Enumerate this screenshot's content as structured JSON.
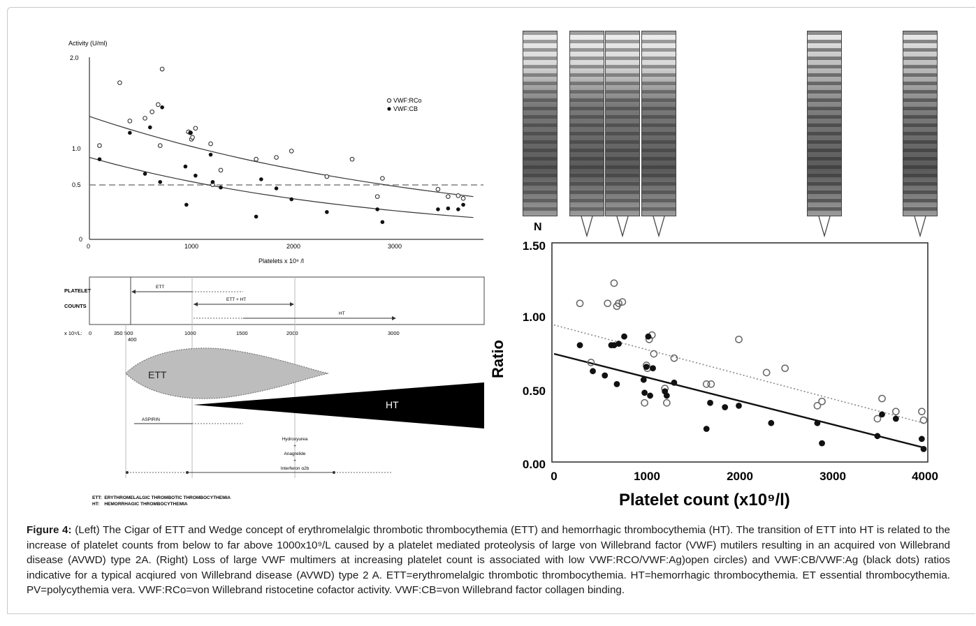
{
  "left_top_chart": {
    "y_axis_title": "Activity (U/ml)",
    "y_ticks": [
      "2.0",
      "1.0",
      "0.5",
      "0"
    ],
    "x_ticks": [
      "0",
      "1000",
      "2000",
      "3000"
    ],
    "x_axis_title": "Platelets x 10⁹ /l",
    "legend": [
      "VWF:RCo",
      "VWF:CB"
    ],
    "chart_data": {
      "type": "scatter",
      "xlabel": "Platelets x 10⁹ /l",
      "ylabel": "Activity (U/ml)",
      "xlim": [
        0,
        3900
      ],
      "ylim": [
        0,
        2.0
      ],
      "reference_line_y": 0.5,
      "series": [
        {
          "name": "VWF:RCo",
          "marker": "open-circle",
          "x": [
            100,
            300,
            400,
            550,
            620,
            680,
            700,
            720,
            980,
            1000,
            1010,
            1020,
            1050,
            1200,
            1220,
            1300,
            1650,
            1850,
            2000,
            2350,
            2600,
            2900,
            2850,
            3450,
            3550,
            3650,
            3700
          ],
          "y": [
            1.03,
            1.72,
            1.3,
            1.33,
            1.4,
            1.48,
            1.03,
            1.87,
            1.18,
            1.17,
            1.1,
            1.12,
            1.22,
            1.05,
            0.6,
            0.76,
            0.88,
            0.9,
            0.97,
            0.69,
            0.88,
            0.67,
            0.47,
            0.55,
            0.47,
            0.48,
            0.45
          ]
        },
        {
          "name": "VWF:CB",
          "marker": "filled-circle",
          "x": [
            100,
            400,
            550,
            600,
            700,
            720,
            950,
            960,
            1000,
            1050,
            1200,
            1220,
            1300,
            1650,
            1700,
            1850,
            2000,
            2350,
            2850,
            2900,
            3450,
            3550,
            3650,
            3700
          ],
          "y": [
            0.88,
            1.17,
            0.72,
            1.23,
            0.63,
            1.45,
            0.8,
            0.38,
            1.17,
            0.7,
            0.93,
            0.63,
            0.57,
            0.25,
            0.66,
            0.56,
            0.44,
            0.3,
            0.33,
            0.19,
            0.33,
            0.34,
            0.33,
            0.38
          ]
        }
      ],
      "fit_lines": [
        {
          "series": "VWF:RCo",
          "x": [
            0,
            3800
          ],
          "y": [
            1.35,
            0.47
          ]
        },
        {
          "series": "VWF:CB",
          "x": [
            0,
            3800
          ],
          "y": [
            0.9,
            0.24
          ]
        }
      ]
    }
  },
  "platelet_diagram": {
    "row_label_1": "PLATELET",
    "row_label_2": "COUNTS",
    "unit_label": "x 10⁹/L:",
    "ticks": [
      "0",
      "350",
      "500",
      "1000",
      "1500",
      "2000",
      "3000"
    ],
    "sub_tick": "400",
    "ranges": [
      "ETT",
      "ETT + HT",
      "HT"
    ],
    "cigar_label": "ETT",
    "wedge_label": "HT",
    "aspirin_label": "ASPIRIN",
    "treatments": [
      "Hydroxyurea",
      "+",
      "Anagrelide",
      "+",
      "Interferon α2b"
    ],
    "legend_lines": [
      "ETT:  ERYTHROMELALGIC THROMBOTIC THROMBOCYTHEMIA",
      "HT:    HEMORRHAGIC THROMBOCYTHEMIA"
    ]
  },
  "gels": {
    "labels": [
      "N"
    ]
  },
  "right_chart": {
    "y_axis_title": "Ratio",
    "x_axis_title": "Platelet count (x10⁹/l)",
    "y_ticks": [
      "1.50",
      "1.00",
      "0.50",
      "0.00"
    ],
    "x_ticks": [
      "0",
      "1000",
      "2000",
      "3000",
      "4000"
    ],
    "chart_data": {
      "type": "scatter",
      "xlabel": "Platelet count (x10⁹/l)",
      "ylabel": "Ratio",
      "xlim": [
        0,
        4000
      ],
      "ylim": [
        0,
        1.5
      ],
      "series": [
        {
          "name": "VWF:RCO/VWF:Ag",
          "marker": "open-circle",
          "x": [
            280,
            400,
            580,
            650,
            680,
            700,
            740,
            980,
            1000,
            1010,
            1030,
            1060,
            1080,
            1200,
            1220,
            1300,
            1650,
            1700,
            2000,
            2300,
            2500,
            2850,
            2900,
            3500,
            3550,
            3700,
            3980,
            4000
          ],
          "y": [
            1.1,
            0.69,
            1.1,
            1.24,
            1.08,
            1.1,
            1.11,
            0.41,
            0.67,
            0.65,
            0.85,
            0.88,
            0.75,
            0.51,
            0.41,
            0.72,
            0.54,
            0.54,
            0.85,
            0.62,
            0.65,
            0.39,
            0.42,
            0.3,
            0.44,
            0.35,
            0.35,
            0.29
          ]
        },
        {
          "name": "VWF:CB/VWF:Ag",
          "marker": "filled-circle",
          "x": [
            280,
            420,
            550,
            620,
            650,
            680,
            700,
            760,
            970,
            980,
            1000,
            1020,
            1040,
            1070,
            1200,
            1220,
            1300,
            1650,
            1690,
            1850,
            2000,
            2350,
            2850,
            2900,
            3500,
            3550,
            3700,
            3980,
            4000
          ],
          "y": [
            0.81,
            0.63,
            0.6,
            0.81,
            0.81,
            0.54,
            0.82,
            0.87,
            0.57,
            0.48,
            0.66,
            0.87,
            0.46,
            0.65,
            0.49,
            0.46,
            0.55,
            0.23,
            0.41,
            0.38,
            0.39,
            0.27,
            0.27,
            0.13,
            0.18,
            0.33,
            0.3,
            0.16,
            0.09
          ]
        }
      ],
      "fit_lines": [
        {
          "series": "VWF:RCO/VWF:Ag",
          "style": "dotted",
          "x": [
            0,
            4000
          ],
          "y": [
            0.95,
            0.27
          ]
        },
        {
          "series": "VWF:CB/VWF:Ag",
          "style": "solid",
          "x": [
            0,
            4000
          ],
          "y": [
            0.75,
            0.1
          ]
        }
      ]
    }
  },
  "caption": {
    "label": "Figure 4:",
    "text": " (Left) The Cigar of ETT and Wedge concept of erythromelalgic thrombotic thrombocythemia (ETT) and hemorrhagic thrombocythemia (HT). The transition of ETT into HT is related to the increase of platelet counts from below to far above 1000x10⁹/L caused by a platelet mediated proteolysis of large von Willebrand factor (VWF) mutilers resulting in an acquired von Willebrand disease (AVWD) type 2A. (Right) Loss of large VWF multimers at increasing platelet count is associated with low VWF:RCO/VWF:Ag)open circles) and VWF:CB/VWF:Ag (black dots) ratios indicative for a typical acqiured von Willebrand disease (AVWD) type 2 A. ETT=erythromelalgic thrombotic thrombocythemia. HT=hemorrhagic thrombocythemia. ET essential thrombocythemia. PV=polycythemia vera. VWF:RCo=von Willebrand ristocetine cofactor activity. VWF:CB=von Willebrand factor collagen binding."
  }
}
